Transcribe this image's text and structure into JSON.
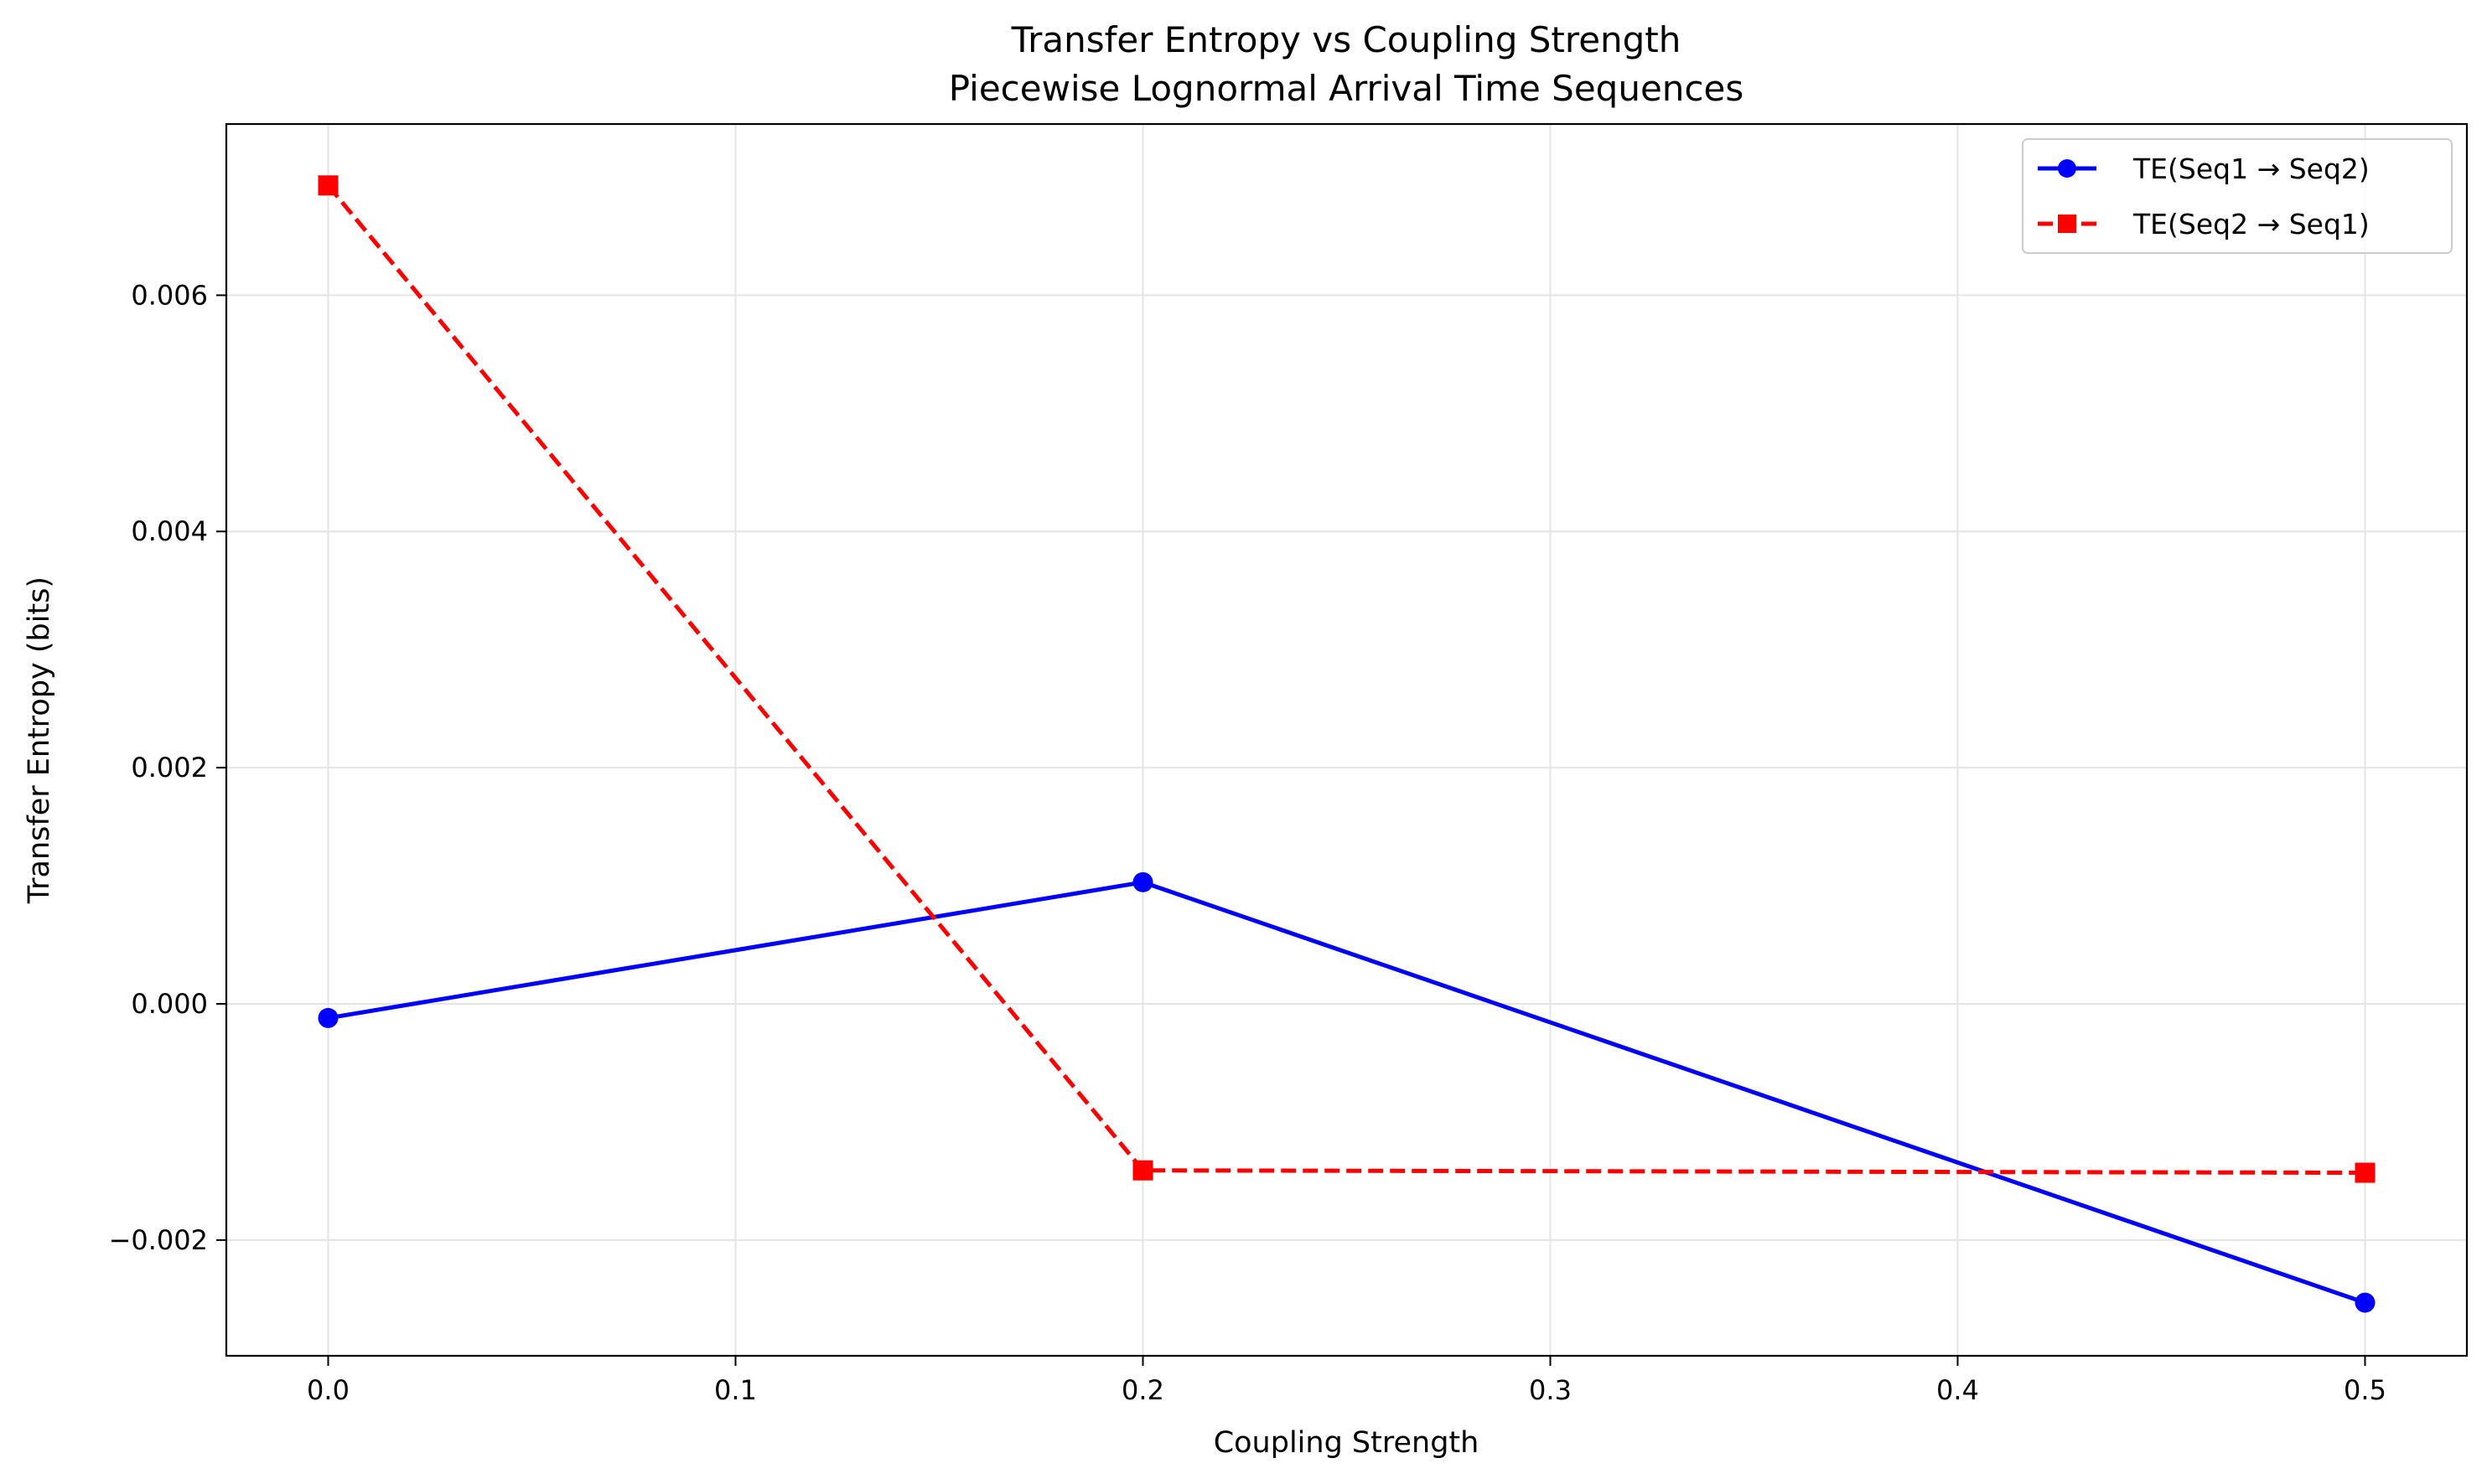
{
  "chart_data": {
    "type": "line",
    "title": "Transfer Entropy vs Coupling Strength",
    "subtitle": "Piecewise Lognormal Arrival Time Sequences",
    "xlabel": "Coupling Strength",
    "ylabel": "Transfer Entropy (bits)",
    "x": [
      0.0,
      0.2,
      0.5
    ],
    "xlim": [
      -0.025,
      0.525
    ],
    "ylim": [
      -0.00298,
      0.00745
    ],
    "xticks": [
      0.0,
      0.1,
      0.2,
      0.3,
      0.4,
      0.5
    ],
    "xtick_labels": [
      "0.0",
      "0.1",
      "0.2",
      "0.3",
      "0.4",
      "0.5"
    ],
    "yticks": [
      -0.002,
      0.0,
      0.002,
      0.004,
      0.006
    ],
    "ytick_labels": [
      "−0.002",
      "0.000",
      "0.002",
      "0.004",
      "0.006"
    ],
    "grid": true,
    "legend_position": "top-right",
    "series": [
      {
        "name": "TE(Seq1 → Seq2)",
        "values": [
          -0.00012,
          0.00103,
          -0.00253
        ],
        "color": "#0000ff",
        "line_style": "solid",
        "marker": "circle"
      },
      {
        "name": "TE(Seq2 → Seq1)",
        "values": [
          0.00693,
          -0.00141,
          -0.00143
        ],
        "color": "#ff0000",
        "line_style": "dashed",
        "marker": "square"
      }
    ]
  }
}
